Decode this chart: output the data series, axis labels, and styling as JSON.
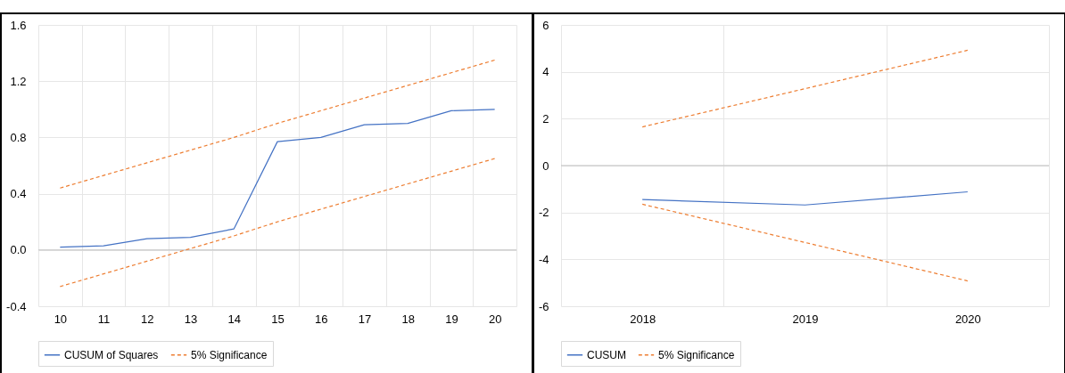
{
  "chart_data": [
    {
      "type": "line",
      "categories": [
        "10",
        "11",
        "12",
        "13",
        "14",
        "15",
        "16",
        "17",
        "18",
        "19",
        "20"
      ],
      "ylim": [
        -0.4,
        1.6
      ],
      "yticks": [
        {
          "value": -0.4,
          "label": "-0.4"
        },
        {
          "value": 0,
          "label": "0.0"
        },
        {
          "value": 0.4,
          "label": "0.4"
        },
        {
          "value": 0.8,
          "label": "0.8"
        },
        {
          "value": 1.2,
          "label": "1.2"
        },
        {
          "value": 1.6,
          "label": "1.6"
        }
      ],
      "grid": true,
      "legend": "bottom",
      "ref_lines": [
        {
          "axis": "y",
          "value": 0,
          "color": "#bfbfbf"
        }
      ],
      "series": [
        {
          "name": "CUSUM of Squares",
          "color": "#4472c4",
          "line_style": "solid",
          "values": [
            0.02,
            0.03,
            0.08,
            0.09,
            0.15,
            0.77,
            0.8,
            0.89,
            0.9,
            0.99,
            1.0
          ]
        },
        {
          "name": "5% Significance",
          "color": "#ed7d31",
          "line_style": "dashed",
          "values": [
            0.44,
            0.53,
            0.62,
            0.71,
            0.8,
            0.9,
            0.99,
            1.08,
            1.17,
            1.26,
            1.35
          ]
        },
        {
          "color": "#ed7d31",
          "line_style": "dashed",
          "values": [
            -0.26,
            -0.17,
            -0.08,
            0.01,
            0.1,
            0.2,
            0.29,
            0.38,
            0.47,
            0.56,
            0.65
          ]
        }
      ]
    },
    {
      "type": "line",
      "categories": [
        "2018",
        "2019",
        "2020"
      ],
      "ylim": [
        -6,
        6
      ],
      "yticks": [
        -6,
        -4,
        -2,
        0,
        2,
        4,
        6
      ],
      "grid": true,
      "legend": "bottom",
      "ref_lines": [
        {
          "axis": "y",
          "value": 0,
          "color": "#bfbfbf"
        }
      ],
      "series": [
        {
          "name": "CUSUM",
          "color": "#4472c4",
          "line_style": "solid",
          "values": [
            -1.45,
            -1.68,
            -1.12
          ]
        },
        {
          "name": "5% Significance",
          "color": "#ed7d31",
          "line_style": "dashed",
          "values": [
            1.65,
            3.28,
            4.92
          ]
        },
        {
          "color": "#ed7d31",
          "line_style": "dashed",
          "values": [
            -1.65,
            -3.28,
            -4.92
          ]
        }
      ]
    }
  ]
}
